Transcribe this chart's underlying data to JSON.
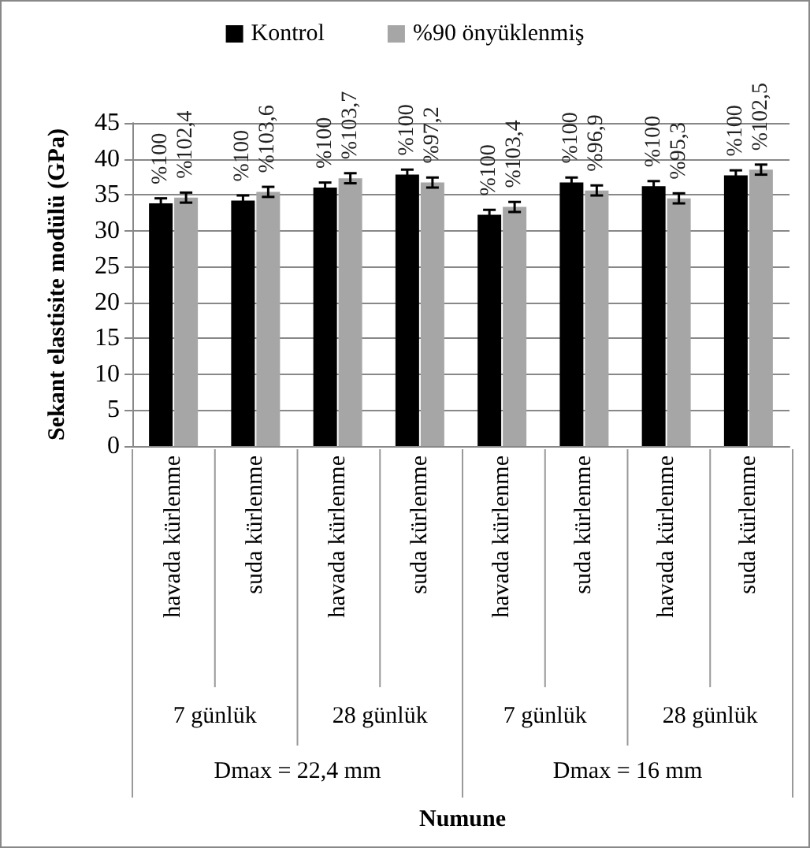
{
  "chart_data": {
    "type": "bar",
    "ylabel": "Sekant elastisite modülü (GPa)",
    "categories": [
      "havada kürlenme",
      "suda kürlenme",
      "havada kürlenme",
      "suda kürlenme",
      "havada kürlenme",
      "suda kürlenme",
      "havada kürlenme",
      "suda kürlenme"
    ],
    "annotations": [
      "7 günlük",
      "28 günlük",
      "7 günlük",
      "28 günlük",
      "Dmax = 22,4 mm",
      "Dmax = 16 mm",
      "Numune",
      "%100",
      "%102,4",
      "%100",
      "%103,6",
      "%100",
      "%103,7",
      "%100",
      "%97,2",
      "%100",
      "%103,4",
      "%100",
      "%96,9",
      "%100",
      "%95,3",
      "%100",
      "%102,5"
    ],
    "series": [
      {
        "name": "Kontrol",
        "color": "#000000",
        "values": [
          33.8,
          34.2,
          36.0,
          37.8,
          32.2,
          36.7,
          36.2,
          37.7
        ],
        "errors": [
          0.7,
          0.7,
          0.7,
          0.7,
          0.7,
          0.7,
          0.7,
          0.7
        ]
      },
      {
        "name": "%90 önyüklenmiş",
        "color": "#a6a6a6",
        "values": [
          34.6,
          35.4,
          37.3,
          36.7,
          33.3,
          35.6,
          34.5,
          38.5
        ],
        "errors": [
          0.7,
          0.7,
          0.7,
          0.7,
          0.7,
          0.7,
          0.7,
          0.7
        ]
      }
    ],
    "ylim": [
      0,
      45
    ],
    "yticks": [
      0,
      5,
      10,
      15,
      20,
      25,
      30,
      35,
      40,
      45
    ],
    "grid": "y",
    "legend": "top"
  }
}
